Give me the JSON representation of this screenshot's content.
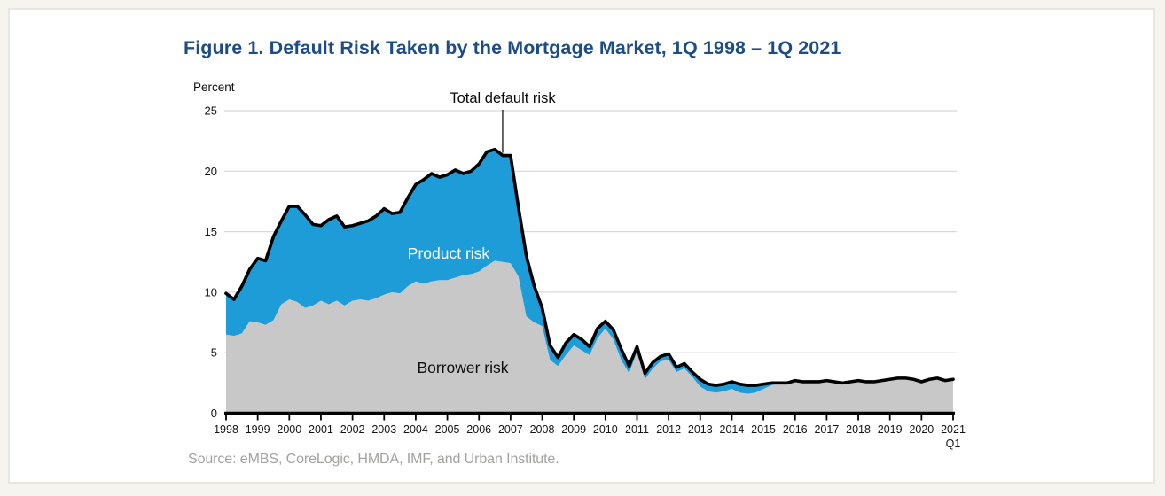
{
  "page": {
    "background_color": "#f6f4ef",
    "panel_background": "#ffffff",
    "panel_border_color": "#e9e6de"
  },
  "figure": {
    "title": "Figure 1. Default Risk Taken by the Mortgage Market, 1Q 1998 – 1Q 2021",
    "title_color": "#1e4d86",
    "axis_unit_label": "Percent",
    "source_note": "Source: eMBS, CoreLogic, HMDA, IMF, and Urban Institute."
  },
  "chart_data": {
    "type": "area",
    "subtype": "stacked-area-with-total-line",
    "title": "Default Risk Taken by the Mortgage Market, 1Q 1998 - 1Q 2021",
    "frequency": "quarterly",
    "x_range": [
      "1998 Q1",
      "2021 Q1"
    ],
    "x_tick_labels": [
      "1998",
      "1999",
      "2000",
      "2001",
      "2002",
      "2003",
      "2004",
      "2005",
      "2006",
      "2007",
      "2008",
      "2009",
      "2010",
      "2011",
      "2012",
      "2013",
      "2014",
      "2015",
      "2016",
      "2017",
      "2018",
      "2019",
      "2020",
      "2021"
    ],
    "x_last_tick_sub_label": "Q1",
    "ylabel": "Percent",
    "ylim": [
      0,
      25
    ],
    "y_ticks": [
      0,
      5,
      10,
      15,
      20,
      25
    ],
    "grid": "horizontal",
    "gridline_color": "#d8d8d8",
    "axis_color": "#000000",
    "legend": "inline-labels",
    "annotations": [
      {
        "label": "Total default risk",
        "x": "2006 Q4",
        "x_index": 35,
        "y": 21.3
      },
      {
        "label": "Product risk",
        "refers_to": "blue stacked band"
      },
      {
        "label": "Borrower risk",
        "refers_to": "gray base area"
      }
    ],
    "series": [
      {
        "name": "Borrower risk",
        "role": "area-base",
        "color": "#c8c8c8",
        "values": [
          6.5,
          6.4,
          6.6,
          7.6,
          7.5,
          7.3,
          7.7,
          9.0,
          9.4,
          9.2,
          8.7,
          8.9,
          9.3,
          9.0,
          9.3,
          8.9,
          9.3,
          9.4,
          9.3,
          9.5,
          9.8,
          10.0,
          9.9,
          10.5,
          10.9,
          10.7,
          10.9,
          11.0,
          11.0,
          11.2,
          11.4,
          11.5,
          11.7,
          12.2,
          12.6,
          12.5,
          12.4,
          11.3,
          8.0,
          7.5,
          7.2,
          4.4,
          3.9,
          4.8,
          5.6,
          5.2,
          4.8,
          6.2,
          7.0,
          6.1,
          4.4,
          3.3,
          5.1,
          2.8,
          3.7,
          4.3,
          4.4,
          3.4,
          3.7,
          3.0,
          2.2,
          1.8,
          1.7,
          1.8,
          2.0,
          1.7,
          1.6,
          1.7,
          2.0,
          2.3,
          2.5,
          2.5,
          2.7,
          2.6,
          2.6,
          2.6,
          2.7,
          2.6,
          2.5,
          2.6,
          2.7,
          2.6,
          2.6,
          2.7,
          2.8,
          2.9,
          2.9,
          2.8,
          2.6,
          2.8,
          2.9,
          2.7,
          2.8
        ]
      },
      {
        "name": "Product risk",
        "role": "area-stacked-on-base",
        "color": "#1e9cd8",
        "values": [
          3.4,
          3.0,
          3.9,
          4.3,
          5.3,
          5.3,
          6.9,
          6.9,
          7.7,
          7.9,
          7.7,
          6.7,
          6.2,
          7.0,
          7.0,
          6.5,
          6.2,
          6.3,
          6.6,
          6.8,
          7.1,
          6.5,
          6.7,
          7.3,
          8.0,
          8.6,
          8.9,
          8.5,
          8.7,
          8.9,
          8.4,
          8.5,
          8.9,
          9.4,
          9.2,
          8.8,
          8.9,
          5.7,
          5.0,
          3.0,
          1.5,
          1.2,
          0.7,
          1.0,
          0.9,
          0.9,
          0.7,
          0.8,
          0.6,
          0.8,
          0.9,
          0.6,
          0.4,
          0.5,
          0.5,
          0.4,
          0.5,
          0.4,
          0.4,
          0.4,
          0.6,
          0.6,
          0.6,
          0.6,
          0.6,
          0.7,
          0.7,
          0.6,
          0.4,
          0.2,
          0.0,
          0.0,
          0.0,
          0.0,
          0.0,
          0.0,
          0.0,
          0.0,
          0.0,
          0.0,
          0.0,
          0.0,
          0.0,
          0.0,
          0.0,
          0.0,
          0.0,
          0.0,
          0.0,
          0.0,
          0.0,
          0.0,
          0.0
        ]
      },
      {
        "name": "Total default risk",
        "role": "line",
        "color": "#000000",
        "values": [
          9.9,
          9.4,
          10.5,
          11.9,
          12.8,
          12.6,
          14.6,
          15.9,
          17.1,
          17.1,
          16.4,
          15.6,
          15.5,
          16.0,
          16.3,
          15.4,
          15.5,
          15.7,
          15.9,
          16.3,
          16.9,
          16.5,
          16.6,
          17.8,
          18.9,
          19.3,
          19.8,
          19.5,
          19.7,
          20.1,
          19.8,
          20.0,
          20.6,
          21.6,
          21.8,
          21.3,
          21.3,
          17.0,
          13.0,
          10.5,
          8.7,
          5.6,
          4.6,
          5.8,
          6.5,
          6.1,
          5.5,
          7.0,
          7.6,
          6.9,
          5.3,
          3.9,
          5.5,
          3.3,
          4.2,
          4.7,
          4.9,
          3.8,
          4.1,
          3.4,
          2.8,
          2.4,
          2.3,
          2.4,
          2.6,
          2.4,
          2.3,
          2.3,
          2.4,
          2.5,
          2.5,
          2.5,
          2.7,
          2.6,
          2.6,
          2.6,
          2.7,
          2.6,
          2.5,
          2.6,
          2.7,
          2.6,
          2.6,
          2.7,
          2.8,
          2.9,
          2.9,
          2.8,
          2.6,
          2.8,
          2.9,
          2.7,
          2.8
        ]
      }
    ]
  }
}
